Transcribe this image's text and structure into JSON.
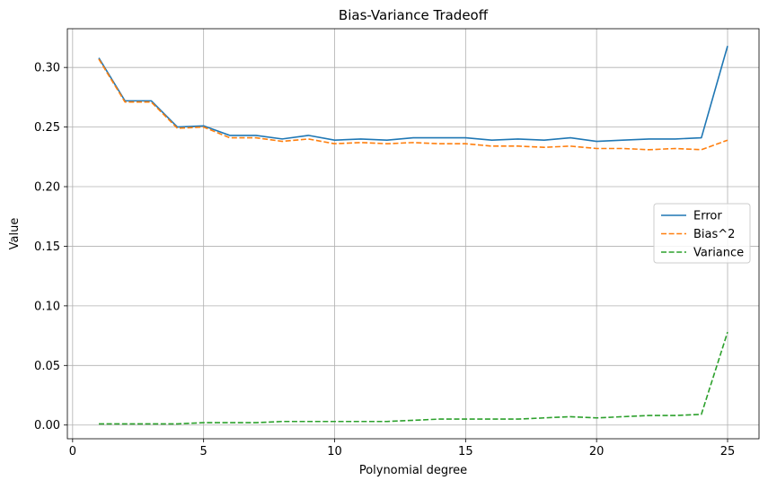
{
  "chart_data": {
    "type": "line",
    "title": "Bias-Variance Tradeoff",
    "xlabel": "Polynomial degree",
    "ylabel": "Value",
    "xlim": [
      -0.2,
      26.2
    ],
    "ylim": [
      -0.0115,
      0.3325
    ],
    "xticks": [
      0,
      5,
      10,
      15,
      20,
      25
    ],
    "xtick_labels": [
      "0",
      "5",
      "10",
      "15",
      "20",
      "25"
    ],
    "yticks": [
      0.0,
      0.05,
      0.1,
      0.15,
      0.2,
      0.25,
      0.3
    ],
    "ytick_labels": [
      "0.00",
      "0.05",
      "0.10",
      "0.15",
      "0.20",
      "0.25",
      "0.30"
    ],
    "grid": true,
    "legend_position": "center-right",
    "x": [
      1,
      2,
      3,
      4,
      5,
      6,
      7,
      8,
      9,
      10,
      11,
      12,
      13,
      14,
      15,
      16,
      17,
      18,
      19,
      20,
      21,
      22,
      23,
      24,
      25
    ],
    "series": [
      {
        "name": "Error",
        "color": "#1f77b4",
        "dash": "solid",
        "values": [
          0.308,
          0.272,
          0.272,
          0.25,
          0.251,
          0.243,
          0.243,
          0.24,
          0.243,
          0.239,
          0.24,
          0.239,
          0.241,
          0.241,
          0.241,
          0.239,
          0.24,
          0.239,
          0.241,
          0.238,
          0.239,
          0.24,
          0.24,
          0.241,
          0.318
        ]
      },
      {
        "name": "Bias^2",
        "color": "#ff7f0e",
        "dash": "dashed",
        "values": [
          0.307,
          0.271,
          0.271,
          0.249,
          0.25,
          0.241,
          0.241,
          0.238,
          0.24,
          0.236,
          0.237,
          0.236,
          0.237,
          0.236,
          0.236,
          0.234,
          0.234,
          0.233,
          0.234,
          0.232,
          0.232,
          0.231,
          0.232,
          0.231,
          0.239
        ]
      },
      {
        "name": "Variance",
        "color": "#2ca02c",
        "dash": "dashed",
        "values": [
          0.001,
          0.001,
          0.001,
          0.001,
          0.002,
          0.002,
          0.002,
          0.003,
          0.003,
          0.003,
          0.003,
          0.003,
          0.004,
          0.005,
          0.005,
          0.005,
          0.005,
          0.006,
          0.007,
          0.006,
          0.007,
          0.008,
          0.008,
          0.009,
          0.078
        ]
      }
    ]
  }
}
